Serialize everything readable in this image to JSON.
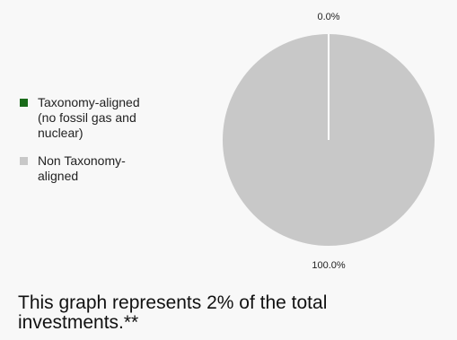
{
  "chart_data": {
    "type": "pie",
    "title": "",
    "slices": [
      {
        "name": "Taxonomy-aligned\n(no fossil gas and\nnuclear)",
        "value": 0.0,
        "label": "0.0%",
        "color": "#1a6b1a"
      },
      {
        "name": "Non Taxonomy-\naligned",
        "value": 100.0,
        "label": "100.0%",
        "color": "#c8c8c8"
      }
    ],
    "legend_position": "left"
  },
  "caption": "This graph represents 2% of the total investments.**"
}
